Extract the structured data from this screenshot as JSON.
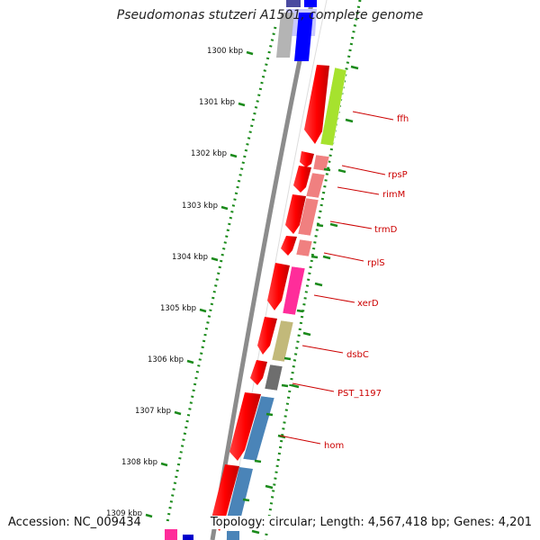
{
  "title": "Pseudomonas stutzeri A1501, complete genome",
  "footer": {
    "accession": "Accession: NC_009434",
    "topology": "Topology: circular; Length: 4,567,418 bp; Genes: 4,201"
  },
  "colors": {
    "backbone": "#8c8c8c",
    "forward_strand": "#ff0000",
    "tick": "#1a8a1a",
    "gene_label": "#cc0000"
  },
  "kbp_ticks": [
    "1300 kbp",
    "1301 kbp",
    "1302 kbp",
    "1303 kbp",
    "1304 kbp",
    "1305 kbp",
    "1306 kbp",
    "1307 kbp",
    "1308 kbp",
    "1309 kbp"
  ],
  "genes": [
    {
      "name": "ffh",
      "color": "#a6e22e"
    },
    {
      "name": "rpsP",
      "color": "#f08080"
    },
    {
      "name": "rimM",
      "color": "#f08080"
    },
    {
      "name": "trmD",
      "color": "#f08080"
    },
    {
      "name": "rplS",
      "color": "#f08080"
    },
    {
      "name": "xerD",
      "color": "#ff2d9a"
    },
    {
      "name": "dsbC",
      "color": "#c2b97a"
    },
    {
      "name": "PST_1197",
      "color": "#6e6e6e"
    },
    {
      "name": "hom",
      "color": "#4a84b8"
    }
  ]
}
